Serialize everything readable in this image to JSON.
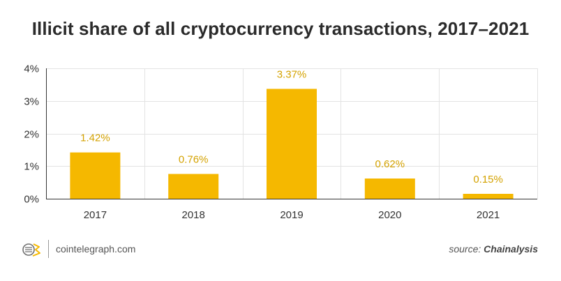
{
  "chart_data": {
    "type": "bar",
    "title": "Illicit share of all cryptocurrency transactions, 2017–2021",
    "categories": [
      "2017",
      "2018",
      "2019",
      "2020",
      "2021"
    ],
    "values": [
      1.42,
      0.76,
      3.37,
      0.62,
      0.15
    ],
    "data_labels": [
      "1.42%",
      "0.76%",
      "3.37%",
      "0.62%",
      "0.15%"
    ],
    "yticks": [
      0,
      1,
      2,
      3,
      4
    ],
    "ytick_labels": [
      "0%",
      "1%",
      "2%",
      "3%",
      "4%"
    ],
    "ylim": [
      0,
      4
    ],
    "xlabel": "",
    "ylabel": "",
    "grid": true,
    "colors": {
      "bar": "#f5b800",
      "label": "#d4a200",
      "grid": "#e3e3e3",
      "axis": "#333333"
    }
  },
  "footer": {
    "site": "cointelegraph.com",
    "source_prefix": "source:",
    "source_name": "Chainalysis"
  },
  "icons": {
    "logo": "cointelegraph-logo-icon"
  }
}
